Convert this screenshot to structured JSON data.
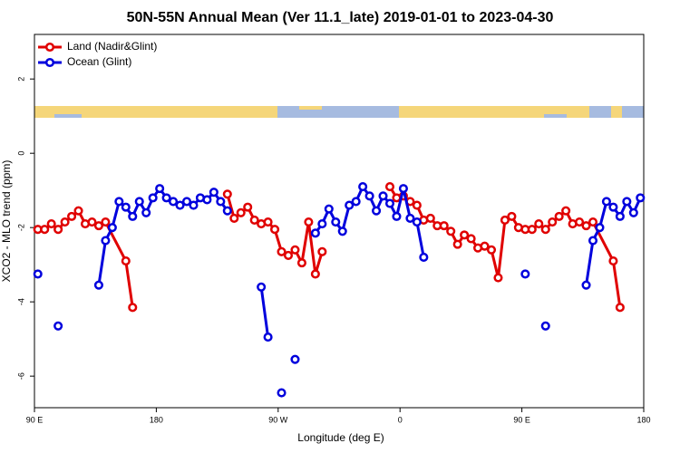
{
  "chart_data": {
    "type": "line",
    "title": "50N-55N Annual Mean (Ver 11.1_late)   2019-01-01 to 2023-04-30",
    "x_label": "Longitude (deg E)",
    "y_label": "XCO2 - MLO trend (ppm)",
    "xlim": [
      90,
      540
    ],
    "xticks": [
      {
        "value": 90,
        "label": "90 E"
      },
      180,
      {
        "value": 270,
        "label": "90 W"
      },
      {
        "value": 360,
        "label": "0"
      },
      {
        "value": 450,
        "label": "90 E"
      },
      {
        "value": 540,
        "label": "180"
      }
    ],
    "ylim": [
      -6.85,
      3.2
    ],
    "yticks": [
      -6,
      -4,
      -2,
      0,
      2
    ],
    "legend": "top-left",
    "series": [
      {
        "name": "Land (Nadir&Glint)",
        "color": "#e00000",
        "x": [
          92.5,
          97.5,
          102.5,
          107.5,
          112.5,
          117.5,
          122.5,
          127.5,
          132.5,
          137.5,
          142.5,
          157.5,
          162.5,
          null,
          232.5,
          237.5,
          242.5,
          247.5,
          252.5,
          257.5,
          262.5,
          267.5,
          272.5,
          277.5,
          282.5,
          287.5,
          292.5,
          297.5,
          302.5,
          null,
          352.5,
          357.5,
          362.5,
          367.5,
          372.5,
          377.5,
          382.5,
          387.5,
          392.5,
          397.5,
          402.5,
          407.5,
          412.5,
          417.5,
          422.5,
          427.5,
          432.5,
          437.5,
          442.5,
          447.5,
          452.5,
          457.5,
          462.5,
          467.5,
          472.5,
          477.5,
          482.5,
          487.5,
          492.5,
          497.5,
          502.5,
          517.5,
          522.5
        ],
        "values": [
          -2.05,
          -2.05,
          -1.9,
          -2.05,
          -1.85,
          -1.7,
          -1.55,
          -1.9,
          -1.85,
          -1.95,
          -1.85,
          -2.9,
          -4.15,
          null,
          -1.1,
          -1.75,
          -1.6,
          -1.45,
          -1.8,
          -1.9,
          -1.85,
          -2.05,
          -2.65,
          -2.75,
          -2.6,
          -2.95,
          -1.85,
          -3.25,
          -2.65,
          null,
          -0.9,
          -1.2,
          -1.15,
          -1.3,
          -1.4,
          -1.8,
          -1.75,
          -1.95,
          -1.95,
          -2.1,
          -2.45,
          -2.2,
          -2.3,
          -2.55,
          -2.5,
          -2.6,
          -3.35,
          -1.8,
          -1.7,
          -2.0,
          -2.05,
          -2.05,
          -1.9,
          -2.05,
          -1.85,
          -1.7,
          -1.55,
          -1.9,
          -1.85,
          -1.95,
          -1.85,
          -2.9,
          -4.15
        ]
      },
      {
        "name": "Ocean (Glint)",
        "color": "#0000dd",
        "x": [
          92.5,
          null,
          107.5,
          null,
          137.5,
          142.5,
          147.5,
          152.5,
          157.5,
          162.5,
          167.5,
          172.5,
          177.5,
          182.5,
          187.5,
          192.5,
          197.5,
          202.5,
          207.5,
          212.5,
          217.5,
          222.5,
          227.5,
          232.5,
          null,
          257.5,
          262.5,
          null,
          272.5,
          null,
          282.5,
          null,
          297.5,
          302.5,
          307.5,
          312.5,
          317.5,
          322.5,
          327.5,
          332.5,
          337.5,
          342.5,
          347.5,
          352.5,
          357.5,
          362.5,
          367.5,
          372.5,
          377.5,
          null,
          452.5,
          null,
          467.5,
          null,
          497.5,
          502.5,
          507.5,
          512.5,
          517.5,
          522.5,
          527.5,
          532.5,
          537.5
        ],
        "values": [
          -3.25,
          null,
          -4.65,
          null,
          -3.55,
          -2.35,
          -2.0,
          -1.3,
          -1.45,
          -1.7,
          -1.3,
          -1.6,
          -1.2,
          -0.95,
          -1.2,
          -1.3,
          -1.4,
          -1.3,
          -1.4,
          -1.2,
          -1.25,
          -1.05,
          -1.3,
          -1.55,
          null,
          -3.6,
          -4.95,
          null,
          -6.45,
          null,
          -5.55,
          null,
          -2.15,
          -1.9,
          -1.5,
          -1.85,
          -2.1,
          -1.4,
          -1.3,
          -0.9,
          -1.15,
          -1.55,
          -1.15,
          -1.35,
          -1.7,
          -0.95,
          -1.75,
          -1.85,
          -2.8,
          null,
          -3.25,
          null,
          -4.65,
          null,
          -3.55,
          -2.35,
          -2.0,
          -1.3,
          -1.45,
          -1.7,
          -1.3,
          -1.6,
          -1.2
        ]
      }
    ]
  }
}
